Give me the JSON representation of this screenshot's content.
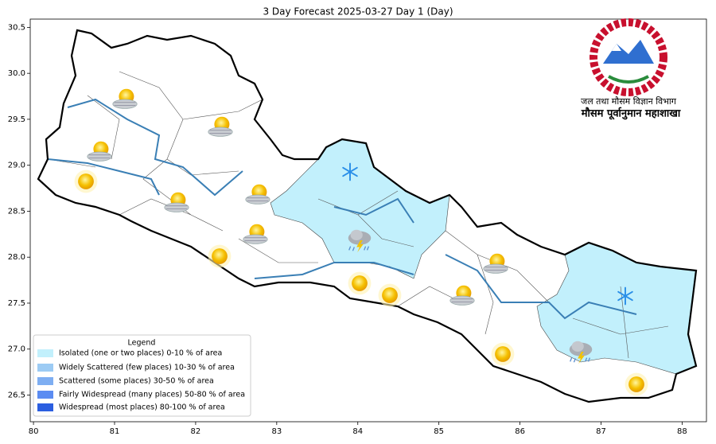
{
  "chart_data": {
    "type": "map",
    "title": "3 Day Forecast 2025-03-27 Day 1 (Day)",
    "xlim": [
      79.96,
      88.3
    ],
    "ylim": [
      26.21,
      30.59
    ],
    "xticks": [
      80,
      81,
      82,
      83,
      84,
      85,
      86,
      87,
      88
    ],
    "yticks": [
      {
        "value": 26.5,
        "label": "26.5"
      },
      {
        "value": 27,
        "label": "27.0"
      },
      {
        "value": 27.5,
        "label": "27.5"
      },
      {
        "value": 28,
        "label": "28.0"
      },
      {
        "value": 28.5,
        "label": "28.5"
      },
      {
        "value": 29,
        "label": "29.0"
      },
      {
        "value": 29.5,
        "label": "29.5"
      },
      {
        "value": 30,
        "label": "30.0"
      },
      {
        "value": 30.5,
        "label": "30.5"
      }
    ],
    "legend": {
      "title": "Legend",
      "position": "lower left",
      "entries": [
        {
          "name": "Isolated (one or two places)  0-10 % of area",
          "color": "#c2f0fc"
        },
        {
          "name": "Widely Scattered (few places) 10-30 % of area",
          "color": "#9ccbf4"
        },
        {
          "name": "Scattered (some places) 30-50  % of area",
          "color": "#7eaef2"
        },
        {
          "name": "Fairly Widespread (many places) 50-80 % of area",
          "color": "#5b8cf2"
        },
        {
          "name": "Widespread (most places) 80-100 % of area",
          "color": "#2b5ee0"
        }
      ]
    }
  },
  "logo": {
    "line1": "जल तथा मौसम विज्ञान विभाग",
    "line2": "मौसम पूर्वानुमान महाशाखा"
  }
}
